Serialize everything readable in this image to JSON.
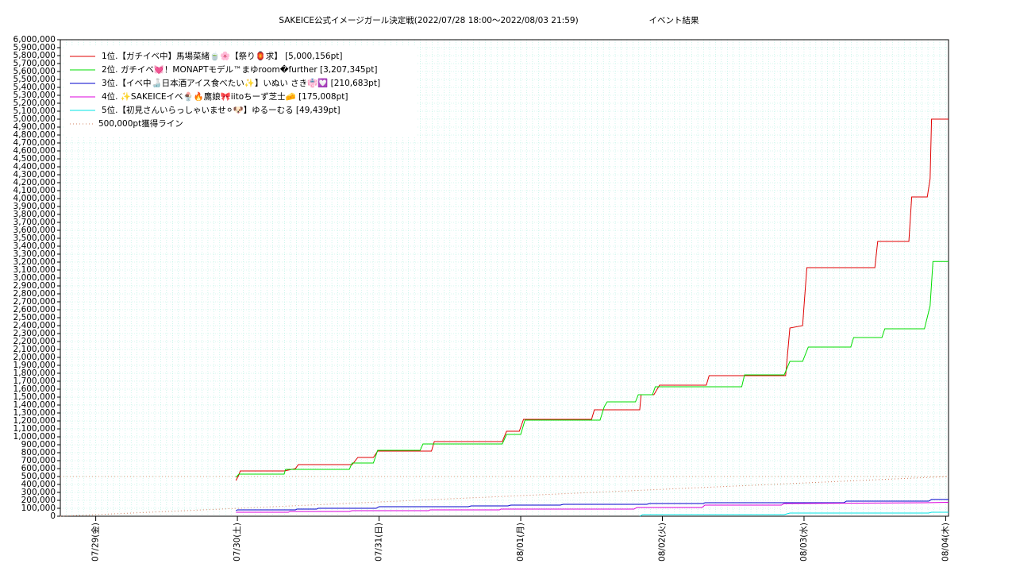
{
  "chart_data": {
    "type": "line",
    "title": "SAKEICE公式イメージガール決定戦(2022/07/28 18:00～2022/08/03 21:59)",
    "subtitle": "イベント結果",
    "xlim": [
      0.75,
      7.02
    ],
    "xticks": [
      {
        "value": 1,
        "label": "07/29(金)"
      },
      {
        "value": 2,
        "label": "07/30(土)"
      },
      {
        "value": 3,
        "label": "07/31(日)"
      },
      {
        "value": 4,
        "label": "08/01(月)"
      },
      {
        "value": 5,
        "label": "08/02(火)"
      },
      {
        "value": 6,
        "label": "08/03(水)"
      },
      {
        "value": 7,
        "label": "08/04(木)"
      }
    ],
    "ylim": [
      0,
      6000000
    ],
    "yticks": [
      0,
      {
        "value": 100000,
        "label": "100,000"
      },
      {
        "value": 200000,
        "label": "200,000"
      },
      {
        "value": 300000,
        "label": "300,000"
      },
      {
        "value": 400000,
        "label": "400,000"
      },
      {
        "value": 500000,
        "label": "500,000"
      },
      {
        "value": 600000,
        "label": "600,000"
      },
      {
        "value": 700000,
        "label": "700,000"
      },
      {
        "value": 800000,
        "label": "800,000"
      },
      {
        "value": 900000,
        "label": "900,000"
      },
      {
        "value": 1000000,
        "label": "1,000,000"
      },
      {
        "value": 1100000,
        "label": "1,100,000"
      },
      {
        "value": 1200000,
        "label": "1,200,000"
      },
      {
        "value": 1300000,
        "label": "1,300,000"
      },
      {
        "value": 1400000,
        "label": "1,400,000"
      },
      {
        "value": 1500000,
        "label": "1,500,000"
      },
      {
        "value": 1600000,
        "label": "1,600,000"
      },
      {
        "value": 1700000,
        "label": "1,700,000"
      },
      {
        "value": 1800000,
        "label": "1,800,000"
      },
      {
        "value": 1900000,
        "label": "1,900,000"
      },
      {
        "value": 2000000,
        "label": "2,000,000"
      },
      {
        "value": 2100000,
        "label": "2,100,000"
      },
      {
        "value": 2200000,
        "label": "2,200,000"
      },
      {
        "value": 2300000,
        "label": "2,300,000"
      },
      {
        "value": 2400000,
        "label": "2,400,000"
      },
      {
        "value": 2500000,
        "label": "2,500,000"
      },
      {
        "value": 2600000,
        "label": "2,600,000"
      },
      {
        "value": 2700000,
        "label": "2,700,000"
      },
      {
        "value": 2800000,
        "label": "2,800,000"
      },
      {
        "value": 2900000,
        "label": "2,900,000"
      },
      {
        "value": 3000000,
        "label": "3,000,000"
      },
      {
        "value": 3100000,
        "label": "3,100,000"
      },
      {
        "value": 3200000,
        "label": "3,200,000"
      },
      {
        "value": 3300000,
        "label": "3,300,000"
      },
      {
        "value": 3400000,
        "label": "3,400,000"
      },
      {
        "value": 3500000,
        "label": "3,500,000"
      },
      {
        "value": 3600000,
        "label": "3,600,000"
      },
      {
        "value": 3700000,
        "label": "3,700,000"
      },
      {
        "value": 3800000,
        "label": "3,800,000"
      },
      {
        "value": 3900000,
        "label": "3,900,000"
      },
      {
        "value": 4000000,
        "label": "4,000,000"
      },
      {
        "value": 4100000,
        "label": "4,100,000"
      },
      {
        "value": 4200000,
        "label": "4,200,000"
      },
      {
        "value": 4300000,
        "label": "4,300,000"
      },
      {
        "value": 4400000,
        "label": "4,400,000"
      },
      {
        "value": 4500000,
        "label": "4,500,000"
      },
      {
        "value": 4600000,
        "label": "4,600,000"
      },
      {
        "value": 4700000,
        "label": "4,700,000"
      },
      {
        "value": 4800000,
        "label": "4,800,000"
      },
      {
        "value": 4900000,
        "label": "4,900,000"
      },
      {
        "value": 5000000,
        "label": "5,000,000"
      },
      {
        "value": 5100000,
        "label": "5,100,000"
      },
      {
        "value": 5200000,
        "label": "5,200,000"
      },
      {
        "value": 5300000,
        "label": "5,300,000"
      },
      {
        "value": 5400000,
        "label": "5,400,000"
      },
      {
        "value": 5500000,
        "label": "5,500,000"
      },
      {
        "value": 5600000,
        "label": "5,600,000"
      },
      {
        "value": 5700000,
        "label": "5,700,000"
      },
      {
        "value": 5800000,
        "label": "5,800,000"
      },
      {
        "value": 5900000,
        "label": "5,900,000"
      },
      {
        "value": 6000000,
        "label": "6,000,000"
      }
    ],
    "grid": true,
    "legend": "upper-left",
    "reference_line": 500000,
    "series": [
      {
        "name": "1位.【ガチイベ中】馬場菜緒🍵🌸【祭り🏮求】 [5,000,156pt]",
        "color": "#e00000",
        "x": [
          1.99,
          2.01,
          2.02,
          2.33,
          2.41,
          2.43,
          2.81,
          2.85,
          2.96,
          2.99,
          3.37,
          3.39,
          3.87,
          3.9,
          3.99,
          4.02,
          4.5,
          4.52,
          4.84,
          4.85,
          4.94,
          4.98,
          5.31,
          5.33,
          5.87,
          5.9,
          5.99,
          6.0,
          6.02,
          6.5,
          6.52,
          6.74,
          6.76,
          6.87,
          6.89,
          6.9,
          7.02
        ],
        "values": [
          450000,
          520000,
          570000,
          570000,
          600000,
          650000,
          650000,
          740000,
          740000,
          820000,
          820000,
          940000,
          940000,
          1070000,
          1070000,
          1220000,
          1220000,
          1340000,
          1340000,
          1530000,
          1530000,
          1650000,
          1650000,
          1770000,
          1770000,
          2370000,
          2400000,
          2650000,
          3130000,
          3130000,
          3460000,
          3460000,
          4020000,
          4020000,
          4250000,
          5000156,
          5000156
        ]
      },
      {
        "name": "2位. ガチイベ💓！MONAPTモデル™まゆroom�further [3,207,345pt]",
        "color": "#00dd00",
        "x": [
          1.99,
          2.01,
          2.33,
          2.34,
          2.79,
          2.81,
          2.96,
          2.99,
          3.29,
          3.31,
          3.87,
          3.9,
          4.0,
          4.03,
          4.56,
          4.59,
          4.61,
          4.81,
          4.83,
          4.93,
          4.95,
          5.56,
          5.58,
          5.86,
          5.9,
          5.99,
          6.03,
          6.33,
          6.35,
          6.55,
          6.57,
          6.85,
          6.89,
          6.91,
          7.02
        ],
        "values": [
          490000,
          530000,
          530000,
          590000,
          590000,
          670000,
          670000,
          830000,
          830000,
          910000,
          910000,
          1030000,
          1030000,
          1210000,
          1210000,
          1380000,
          1440000,
          1440000,
          1530000,
          1530000,
          1630000,
          1630000,
          1780000,
          1780000,
          1950000,
          1950000,
          2130000,
          2130000,
          2250000,
          2250000,
          2360000,
          2360000,
          2650000,
          3207345,
          3207345
        ]
      },
      {
        "name": "3位.【イベ中🍶日本酒アイス食べたい✨】いぬい さき👘💟 [210,683pt]",
        "color": "#0000cc",
        "x": [
          1.99,
          2.0,
          2.41,
          2.42,
          2.56,
          2.57,
          2.98,
          3.0,
          3.63,
          3.65,
          3.91,
          3.93,
          4.28,
          4.3,
          4.89,
          4.91,
          5.29,
          5.3,
          6.28,
          6.3,
          6.88,
          6.9,
          7.02
        ],
        "values": [
          70000,
          80000,
          80000,
          90000,
          90000,
          100000,
          100000,
          120000,
          120000,
          130000,
          130000,
          140000,
          140000,
          150000,
          150000,
          160000,
          160000,
          170000,
          170000,
          190000,
          190000,
          210683,
          210683
        ]
      },
      {
        "name": "4位. ✨SAKEICEイベ🍨🔥鷹娘🎀iitoちーず芝士🧀 [175,008pt]",
        "color": "#dd00dd",
        "x": [
          1.99,
          2.36,
          2.37,
          2.79,
          2.81,
          3.35,
          3.36,
          3.85,
          3.86,
          4.8,
          4.82,
          5.28,
          5.3,
          5.84,
          5.86,
          6.85,
          7.02
        ],
        "values": [
          50000,
          50000,
          60000,
          60000,
          70000,
          70000,
          80000,
          80000,
          90000,
          90000,
          110000,
          110000,
          140000,
          140000,
          160000,
          170000,
          175008
        ]
      },
      {
        "name": "5位.【初見さんいらっしゃいませ⚪🐶】ゆるーむる [49,439pt]",
        "color": "#00e5e5",
        "x": [
          4.84,
          4.86,
          5.86,
          5.9,
          6.88,
          6.9,
          7.02
        ],
        "values": [
          0,
          20000,
          20000,
          40000,
          40000,
          49439,
          49439
        ]
      },
      {
        "name": "500,000pt獲得ライン",
        "color": "#d08060",
        "dashed": true,
        "x": [
          0.75,
          7.02
        ],
        "values": [
          0,
          500000
        ]
      }
    ]
  }
}
